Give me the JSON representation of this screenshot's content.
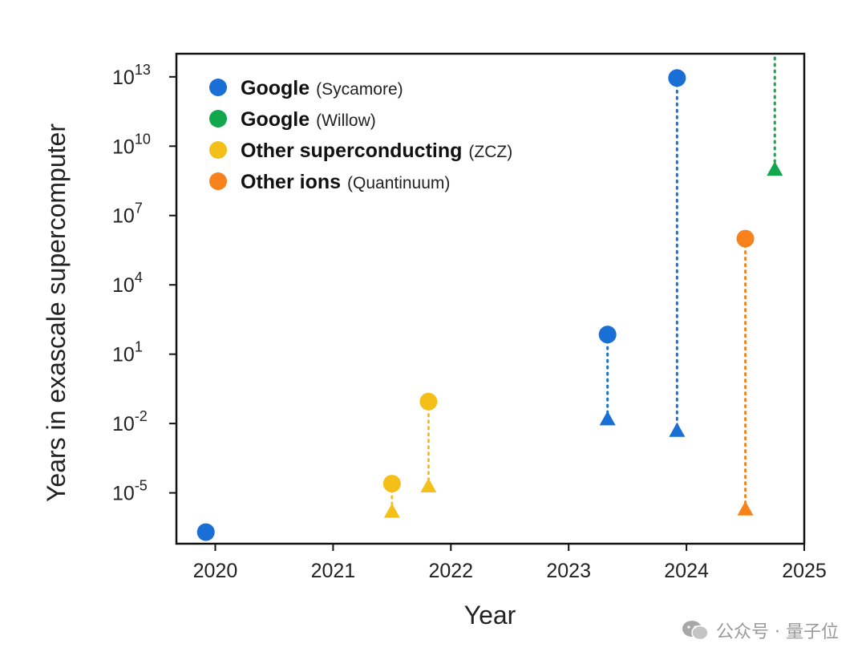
{
  "chart_data": {
    "type": "scatter",
    "xlabel": "Year",
    "ylabel": "Years in exascale supercomputer",
    "x_ticks": [
      "2020",
      "2021",
      "2022",
      "2023",
      "2024",
      "2025"
    ],
    "x_range": [
      2019.67,
      2025.0
    ],
    "y_scale": "log",
    "y_range_exp": [
      -7.2,
      14.0
    ],
    "y_ticks": [
      {
        "base": "10",
        "exp": "13",
        "value": 10000000000000.0
      },
      {
        "base": "10",
        "exp": "10",
        "value": 10000000000.0
      },
      {
        "base": "10",
        "exp": "7",
        "value": 10000000.0
      },
      {
        "base": "10",
        "exp": "4",
        "value": 10000.0
      },
      {
        "base": "10",
        "exp": "1",
        "value": 10.0
      },
      {
        "base": "10",
        "exp": "-2",
        "value": 0.01
      },
      {
        "base": "10",
        "exp": "-5",
        "value": 1e-05
      }
    ],
    "grid": false,
    "legend_placement": "top-left",
    "series": [
      {
        "key": "sycamore",
        "name": "Google",
        "detail": "(Sycamore)",
        "color": "#1a6fd6"
      },
      {
        "key": "willow",
        "name": "Google",
        "detail": "(Willow)",
        "color": "#12a64d"
      },
      {
        "key": "zcz",
        "name": "Other superconducting",
        "detail": "(ZCZ)",
        "color": "#f5bf1a"
      },
      {
        "key": "quantinuum",
        "name": "Other ions",
        "detail": "(Quantinuum)",
        "color": "#f7821b"
      }
    ],
    "points": [
      {
        "series": "sycamore",
        "x": 2019.92,
        "circle_exp": -6.7
      },
      {
        "series": "zcz",
        "x": 2021.5,
        "circle_exp": -4.6,
        "triangle_exp": -5.8
      },
      {
        "series": "zcz",
        "x": 2021.81,
        "circle_exp": -1.05,
        "triangle_exp": -4.7
      },
      {
        "series": "sycamore",
        "x": 2023.33,
        "circle_exp": 1.85,
        "triangle_exp": -1.8
      },
      {
        "series": "sycamore",
        "x": 2023.92,
        "circle_exp": 12.95,
        "triangle_exp": -2.3
      },
      {
        "series": "quantinuum",
        "x": 2024.5,
        "circle_exp": 6.0,
        "triangle_exp": -5.7
      },
      {
        "series": "willow",
        "x": 2024.75,
        "circle_exp": 14.5,
        "triangle_exp": 9.0,
        "circle_offscale": true
      }
    ]
  },
  "watermark": {
    "text": "公众号 · 量子位",
    "icon": "wechat-icon",
    "color": "#9a9a9a"
  }
}
